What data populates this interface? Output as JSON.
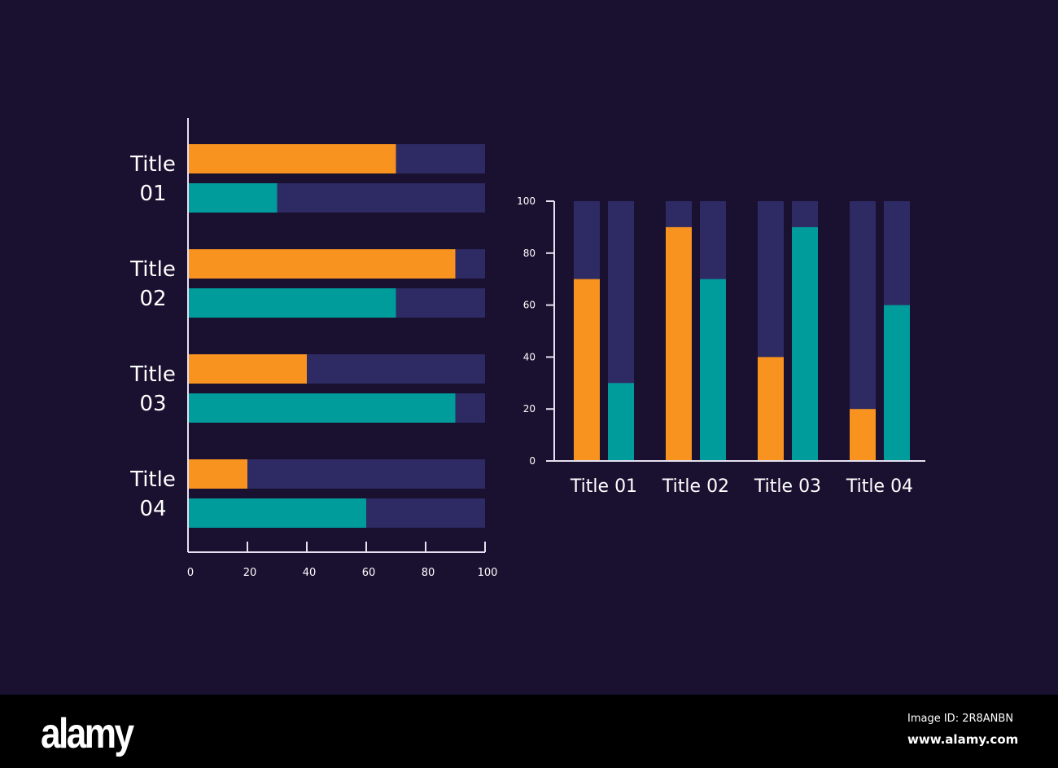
{
  "colors": {
    "background": "#1a1130",
    "orange": "#f7931e",
    "teal": "#009b9b",
    "track": "#2e2a63",
    "axis": "#e6e0f0"
  },
  "chart_data": [
    {
      "type": "bar",
      "orientation": "horizontal",
      "categories": [
        "Title 01",
        "Title 02",
        "Title 03",
        "Title 04"
      ],
      "category_lines": [
        [
          "Title",
          "01"
        ],
        [
          "Title",
          "02"
        ],
        [
          "Title",
          "03"
        ],
        [
          "Title",
          "04"
        ]
      ],
      "series": [
        {
          "color": "#f7931e",
          "values": [
            70,
            90,
            40,
            20
          ]
        },
        {
          "color": "#009b9b",
          "values": [
            30,
            70,
            90,
            60
          ]
        }
      ],
      "background_track": 100,
      "xlim": [
        0,
        100
      ],
      "xticks": [
        "0",
        "20",
        "40",
        "60",
        "80",
        "100"
      ],
      "grid": false
    },
    {
      "type": "bar",
      "orientation": "vertical",
      "categories": [
        "Title 01",
        "Title 02",
        "Title 03",
        "Title 04"
      ],
      "series": [
        {
          "color": "#f7931e",
          "values": [
            70,
            90,
            40,
            20
          ]
        },
        {
          "color": "#009b9b",
          "values": [
            30,
            70,
            90,
            60
          ]
        }
      ],
      "background_track": 100,
      "ylim": [
        0,
        100
      ],
      "yticks": [
        "0",
        "20",
        "40",
        "60",
        "80",
        "100"
      ],
      "grid": false
    }
  ],
  "footer": {
    "logo": "alamy",
    "image_id": "Image ID: 2R8ANBN",
    "site": "www.alamy.com"
  }
}
